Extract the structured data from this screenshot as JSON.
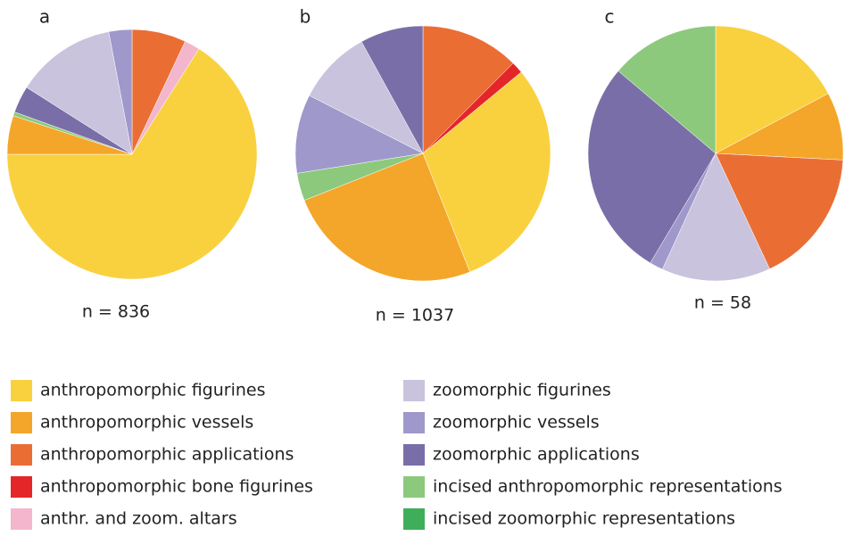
{
  "legend": {
    "categories": [
      "anthropomorphic figurines",
      "anthropomorphic vessels",
      "anthropomorphic applications",
      "anthropomorphic bone figurines",
      "anthr. and zoom. altars",
      "zoomorphic figurines",
      "zoomorphic vessels",
      "zoomorphic applications",
      "incised anthropomorphic representations",
      "incised zoomorphic representations"
    ],
    "colors": [
      "#f9d13f",
      "#f4a62a",
      "#ea6e34",
      "#e52629",
      "#f3b6cd",
      "#c9c3de",
      "#9f98cb",
      "#7a6ea8",
      "#8cc97d",
      "#3fae5b"
    ]
  },
  "chart_data": [
    {
      "type": "pie",
      "title": "a",
      "subtitle": "n = 836",
      "values": [
        66,
        5,
        7,
        0,
        2,
        13,
        3,
        3.5,
        0.5,
        0
      ]
    },
    {
      "type": "pie",
      "title": "b",
      "subtitle": "n = 1037",
      "values": [
        30,
        25,
        12.5,
        1.5,
        0,
        9.5,
        10,
        8,
        3.5,
        0
      ]
    },
    {
      "type": "pie",
      "title": "c",
      "subtitle": "n = 58",
      "values": [
        17.2,
        8.6,
        17.2,
        0,
        0,
        13.8,
        1.7,
        27.6,
        13.8,
        0
      ]
    }
  ]
}
